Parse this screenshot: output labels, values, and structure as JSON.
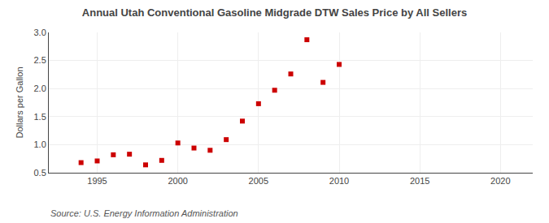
{
  "chart_data": {
    "type": "scatter",
    "title": "Annual Utah Conventional Gasoline Midgrade DTW Sales Price by All Sellers",
    "ylabel": "Dollars per Gallon",
    "annotations": [
      "Source: U.S. Energy Information Administration"
    ],
    "x": [
      1994,
      1995,
      1996,
      1997,
      1998,
      1999,
      2000,
      2001,
      2002,
      2003,
      2004,
      2005,
      2006,
      2007,
      2008,
      2009,
      2010
    ],
    "values": [
      0.68,
      0.71,
      0.82,
      0.83,
      0.64,
      0.72,
      1.03,
      0.94,
      0.9,
      1.09,
      1.42,
      1.73,
      1.97,
      2.26,
      2.87,
      2.11,
      2.43
    ],
    "color": "#cc0000",
    "marker": "square",
    "xlim": [
      1992,
      2022
    ],
    "xticks": [
      1995,
      2000,
      2005,
      2010,
      2015,
      2020
    ],
    "ylim": [
      0.5,
      3.0
    ],
    "yticks": [
      0.5,
      {
        "value": 1.0,
        "label": "1.0"
      },
      1.5,
      {
        "value": 2.0,
        "label": "2.0"
      },
      2.5,
      {
        "value": 3.0,
        "label": "3.0"
      }
    ],
    "grid": true
  }
}
